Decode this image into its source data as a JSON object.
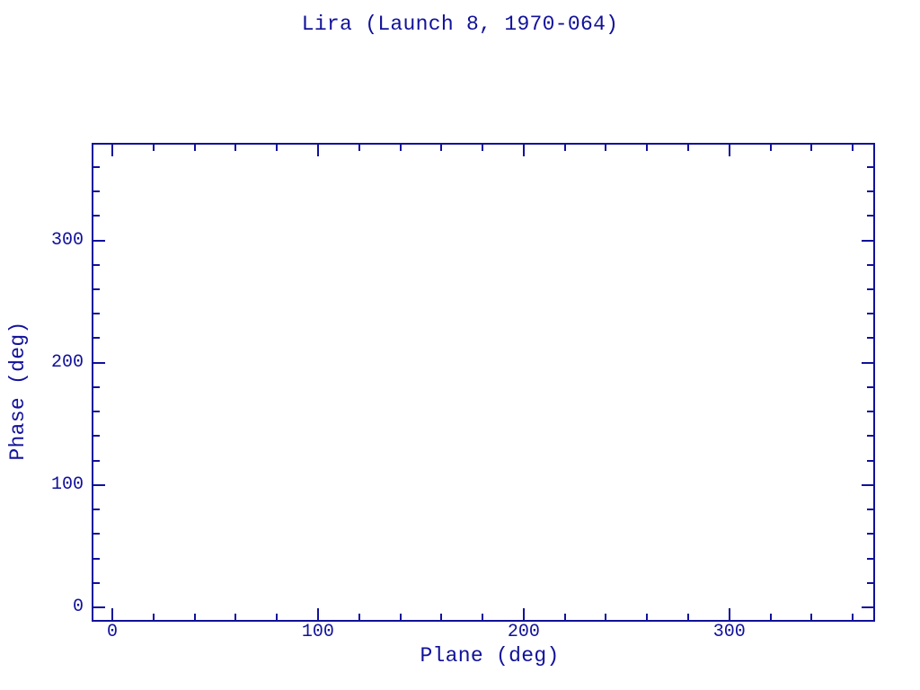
{
  "colors": {
    "plot_color": "#11119b",
    "background": "#ffffff"
  },
  "chart_data": {
    "type": "scatter",
    "title": "Lira (Launch 8, 1970-064)",
    "xlabel": "Plane (deg)",
    "ylabel": "Phase (deg)",
    "xlim": [
      -9.6,
      370.4
    ],
    "ylim": [
      -11,
      379
    ],
    "x_major_ticks": [
      0,
      100,
      200,
      300
    ],
    "x_minor_tick_step": 20,
    "y_major_ticks": [
      0,
      100,
      200,
      300
    ],
    "y_minor_tick_step": 20,
    "x_tick_labels": [
      "0",
      "100",
      "200",
      "300"
    ],
    "y_tick_labels": [
      "0",
      "100",
      "200",
      "300"
    ],
    "points": [],
    "series": [],
    "grid": false,
    "legend": null,
    "frame_style": "closed box with inward-pointing ticks on all four sides",
    "notes": "Plot area is empty; no data points, curves or markers are drawn."
  }
}
